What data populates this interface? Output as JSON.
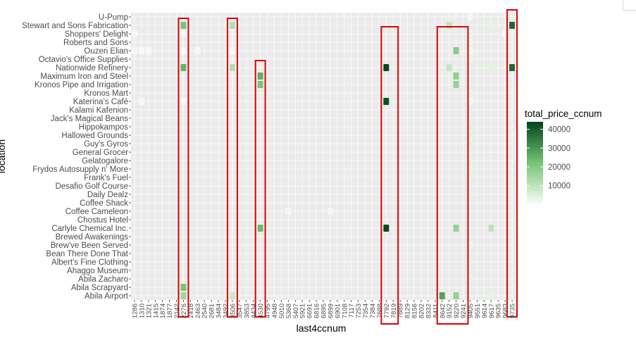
{
  "chart_data": {
    "type": "heatmap",
    "xlabel": "last4ccnum",
    "ylabel": "location",
    "legend_title": "total_price_ccnum",
    "legend_ticks": [
      10000,
      20000,
      30000,
      40000
    ],
    "legend_range": [
      500,
      44000
    ],
    "colors": {
      "low": "#f7fcf5",
      "mid": "#74c476",
      "high": "#00441b",
      "panel": "#ebebeb",
      "highlight_box": "#e00000"
    },
    "x_categories": [
      "1286",
      "1310",
      "1321",
      "1415",
      "1874",
      "1877",
      "2142",
      "2276",
      "2418",
      "2463",
      "2540",
      "2681",
      "3484",
      "3492",
      "3506",
      "3547",
      "3853",
      "4434",
      "4530",
      "4795",
      "4948",
      "5010",
      "5368",
      "5407",
      "5921",
      "6691",
      "6816",
      "6895",
      "6899",
      "6901",
      "7108",
      "7117",
      "7253",
      "7354",
      "7384",
      "7688",
      "7792",
      "7819",
      "7889",
      "8129",
      "8156",
      "8202",
      "8332",
      "8411",
      "8642",
      "9152",
      "9220",
      "9241",
      "9405",
      "9551",
      "9614",
      "9617",
      "9635",
      "9683",
      "9735"
    ],
    "y_categories": [
      "U-Pump",
      "Stewart and Sons Fabrication",
      "Shoppers' Delight",
      "Roberts and Sons",
      "Ouzeri Elian",
      "Octavio's Office Supplies",
      "Nationwide Refinery",
      "Maximum Iron and Steel",
      "Kronos Pipe and Irrigation",
      "Kronos Mart",
      "Katerina's Café",
      "Kalami Kafenion",
      "Jack's Magical Beans",
      "Hippokampos",
      "Hallowed Grounds",
      "Guy's Gyros",
      "General Grocer",
      "Gelatogalore",
      "Frydos Autosupply n' More",
      "Frank's Fuel",
      "Desafio Golf Course",
      "Daily Dealz",
      "Coffee Shack",
      "Coffee Cameleon",
      "Chostus Hotel",
      "Carlyle Chemical Inc.",
      "Brewed Awakenings",
      "Brew've Been Served",
      "Bean There Done That",
      "Albert's Fine Clothing",
      "Ahaggo Museum",
      "Abila Zacharo",
      "Abila Scrapyard",
      "Abila Airport"
    ],
    "cells": [
      [
        "U-Pump",
        "9405",
        1200
      ],
      [
        "Stewart and Sons Fabrication",
        "2276",
        22000
      ],
      [
        "Stewart and Sons Fabrication",
        "3506",
        12000
      ],
      [
        "Stewart and Sons Fabrication",
        "9152",
        9000
      ],
      [
        "Stewart and Sons Fabrication",
        "9617",
        3500
      ],
      [
        "Stewart and Sons Fabrication",
        "9735",
        38000
      ],
      [
        "Shoppers' Delight",
        "1286",
        900
      ],
      [
        "Shoppers' Delight",
        "2276",
        1500
      ],
      [
        "Shoppers' Delight",
        "9405",
        2500
      ],
      [
        "Shoppers' Delight",
        "9683",
        800
      ],
      [
        "Roberts and Sons",
        "9405",
        1500
      ],
      [
        "Ouzeri Elian",
        "1286",
        800
      ],
      [
        "Ouzeri Elian",
        "1310",
        800
      ],
      [
        "Ouzeri Elian",
        "1321",
        800
      ],
      [
        "Ouzeri Elian",
        "2276",
        900
      ],
      [
        "Ouzeri Elian",
        "2463",
        800
      ],
      [
        "Ouzeri Elian",
        "3506",
        1000
      ],
      [
        "Ouzeri Elian",
        "9220",
        19000
      ],
      [
        "Ouzeri Elian",
        "9405",
        900
      ],
      [
        "Octavio's Office Supplies",
        "9405",
        2500
      ],
      [
        "Nationwide Refinery",
        "2276",
        25000
      ],
      [
        "Nationwide Refinery",
        "3506",
        12000
      ],
      [
        "Nationwide Refinery",
        "7792",
        43000
      ],
      [
        "Nationwide Refinery",
        "9152",
        9000
      ],
      [
        "Nationwide Refinery",
        "9617",
        4000
      ],
      [
        "Nationwide Refinery",
        "9735",
        38000
      ],
      [
        "Maximum Iron and Steel",
        "4530",
        26000
      ],
      [
        "Maximum Iron and Steel",
        "9220",
        18000
      ],
      [
        "Kronos Pipe and Irrigation",
        "4530",
        22000
      ],
      [
        "Kronos Pipe and Irrigation",
        "9220",
        17000
      ],
      [
        "Kronos Mart",
        "9405",
        2500
      ],
      [
        "Katerina's Café",
        "7792",
        42000
      ],
      [
        "Katerina's Café",
        "1310",
        900
      ],
      [
        "Katerina's Café",
        "2276",
        900
      ],
      [
        "Katerina's Café",
        "9405",
        900
      ],
      [
        "Hippokampos",
        "9405",
        4500
      ],
      [
        "Hallowed Grounds",
        "9405",
        4000
      ],
      [
        "Guy's Gyros",
        "9405",
        4000
      ],
      [
        "Gelatogalore",
        "9405",
        3500
      ],
      [
        "Frydos Autosupply n' More",
        "9405",
        3000
      ],
      [
        "Daily Dealz",
        "9405",
        2500
      ],
      [
        "Coffee Cameleon",
        "5368",
        1500
      ],
      [
        "Coffee Cameleon",
        "6899",
        1200
      ],
      [
        "Carlyle Chemical Inc.",
        "4530",
        24000
      ],
      [
        "Carlyle Chemical Inc.",
        "7792",
        43000
      ],
      [
        "Carlyle Chemical Inc.",
        "9220",
        17000
      ],
      [
        "Carlyle Chemical Inc.",
        "9617",
        10000
      ],
      [
        "Brew've Been Served",
        "9405",
        1500
      ],
      [
        "Albert's Fine Clothing",
        "9405",
        3000
      ],
      [
        "Abila Zacharo",
        "9405",
        2500
      ],
      [
        "Abila Scrapyard",
        "2276",
        22000
      ],
      [
        "Abila Airport",
        "2276",
        15000
      ],
      [
        "Abila Airport",
        "3506",
        8000
      ],
      [
        "Abila Airport",
        "8642",
        28000
      ],
      [
        "Abila Airport",
        "9220",
        17000
      ],
      [
        "Abila Airport",
        "9617",
        3500
      ]
    ],
    "highlight_columns": [
      "2276",
      "3506",
      "4530",
      "7792",
      "8642",
      "9152",
      "9220",
      "9735"
    ],
    "grid": true
  }
}
